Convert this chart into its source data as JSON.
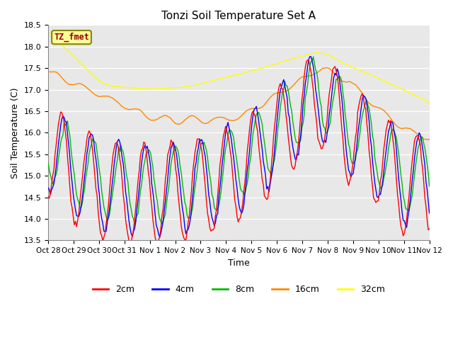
{
  "title": "Tonzi Soil Temperature Set A",
  "xlabel": "Time",
  "ylabel": "Soil Temperature (C)",
  "ylim": [
    13.5,
    18.5
  ],
  "annotation_text": "TZ_fmet",
  "annotation_bg": "#FFFF99",
  "annotation_border": "#888800",
  "annotation_text_color": "#990000",
  "colors": {
    "2cm": "#FF0000",
    "4cm": "#0000FF",
    "8cm": "#00BB00",
    "16cm": "#FF8800",
    "32cm": "#FFFF00"
  },
  "bg_color": "#E8E8E8",
  "x_tick_labels": [
    "Oct 28",
    "Oct 29",
    "Oct 30",
    "Oct 31",
    "Nov 1",
    "Nov 2",
    "Nov 3",
    "Nov 4",
    "Nov 5",
    "Nov 6",
    "Nov 7",
    "Nov 8",
    "Nov 9",
    "Nov 10",
    "Nov 11",
    "Nov 12"
  ],
  "yticks": [
    13.5,
    14.0,
    14.5,
    15.0,
    15.5,
    16.0,
    16.5,
    17.0,
    17.5,
    18.0,
    18.5
  ],
  "n_points": 336,
  "hours_per_day": 24
}
